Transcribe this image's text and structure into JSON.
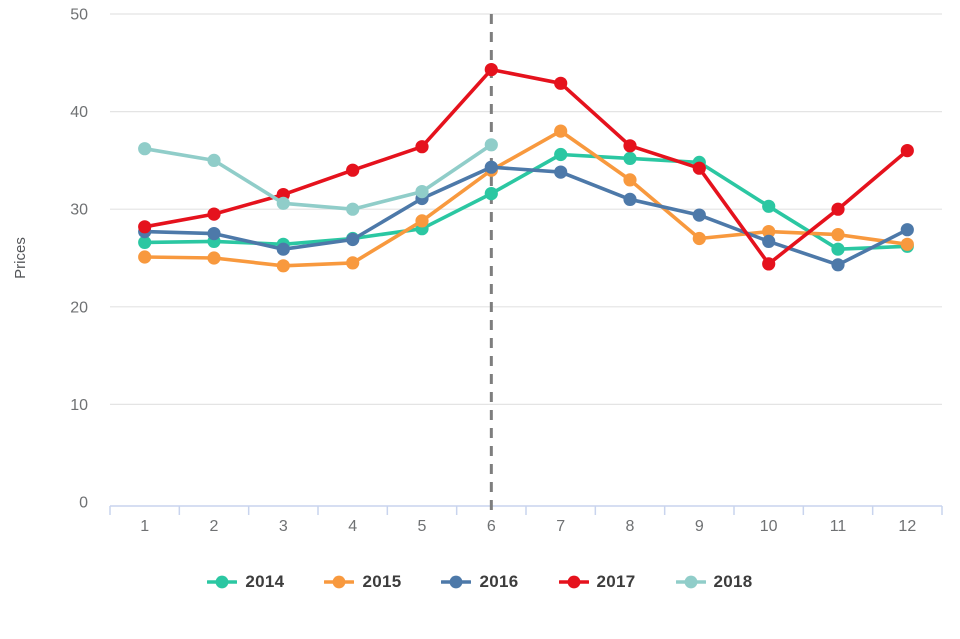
{
  "chart_data": {
    "type": "line",
    "title": "",
    "xlabel": "",
    "ylabel": "Prices",
    "x_categories": [
      "1",
      "2",
      "3",
      "4",
      "5",
      "6",
      "7",
      "8",
      "9",
      "10",
      "11",
      "12"
    ],
    "ylim": [
      0,
      50
    ],
    "yticks": [
      0,
      10,
      20,
      30,
      40,
      50
    ],
    "grid": "horizontal gridlines on, vertical off",
    "legend_position": "bottom",
    "series": [
      {
        "name": "2014",
        "color": "#2bc7a2",
        "values": [
          26.6,
          26.7,
          26.4,
          27.0,
          28.0,
          31.6,
          35.6,
          35.2,
          34.8,
          30.3,
          25.9,
          26.2
        ]
      },
      {
        "name": "2015",
        "color": "#f8993e",
        "values": [
          25.1,
          25.0,
          24.2,
          24.5,
          28.8,
          34.0,
          38.0,
          33.0,
          27.0,
          27.7,
          27.4,
          26.4
        ]
      },
      {
        "name": "2016",
        "color": "#4d79a9",
        "values": [
          27.7,
          27.5,
          25.9,
          26.9,
          31.1,
          34.3,
          33.8,
          31.0,
          29.4,
          26.7,
          24.3,
          27.9
        ]
      },
      {
        "name": "2017",
        "color": "#e5121d",
        "values": [
          28.2,
          29.5,
          31.5,
          34.0,
          36.4,
          44.3,
          42.9,
          36.5,
          34.2,
          24.4,
          30.0,
          36.0
        ]
      },
      {
        "name": "2018",
        "color": "#90cdc9",
        "values": [
          36.2,
          35.0,
          30.6,
          30.0,
          31.8,
          36.6
        ]
      }
    ],
    "annotations": [
      {
        "type": "vline",
        "x_category": "6",
        "style": "dashed",
        "color": "#7e7e7e"
      }
    ]
  },
  "colors": {
    "background": "#ffffff",
    "gridline": "#e4e4e4",
    "axis_line": "#c9d4ee",
    "tick_text": "#6f7173",
    "axis_title_text": "#55575a",
    "legend_text": "#3d3d3d",
    "dashed_line": "#7e7e7e"
  }
}
